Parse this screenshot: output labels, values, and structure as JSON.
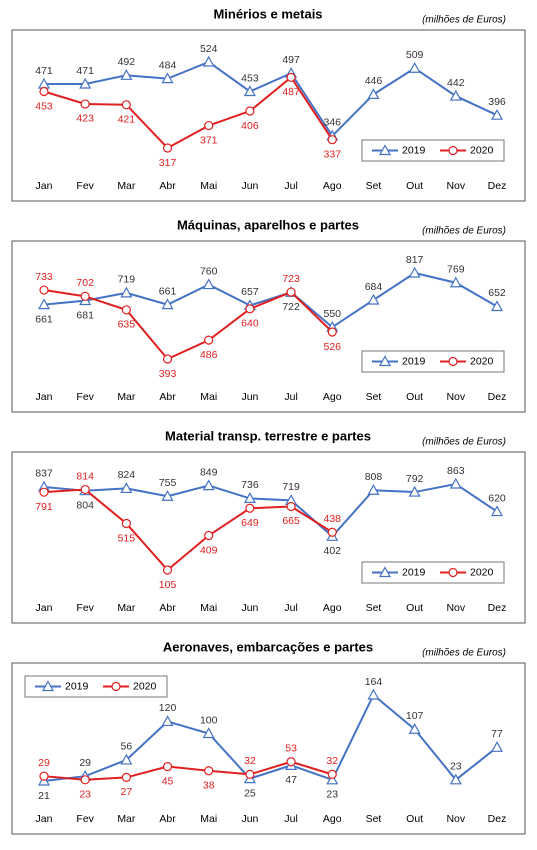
{
  "chart_data": [
    {
      "type": "line",
      "title": "Minérios e metais",
      "subtitle": "(milhões de Euros)",
      "legend": "lower right",
      "categories": [
        "Jan",
        "Fev",
        "Mar",
        "Abr",
        "Mai",
        "Jun",
        "Jul",
        "Ago",
        "Set",
        "Out",
        "Nov",
        "Dez"
      ],
      "series": [
        {
          "name": "2019",
          "color": "#4472c4",
          "marker": "triangle",
          "values": [
            471,
            471,
            492,
            484,
            524,
            453,
            497,
            346,
            446,
            509,
            442,
            396
          ]
        },
        {
          "name": "2020",
          "color": "#e02020",
          "marker": "circle",
          "values": [
            453,
            423,
            421,
            317,
            371,
            406,
            487,
            337,
            null,
            null,
            null,
            null
          ]
        }
      ]
    },
    {
      "type": "line",
      "title": "Máquinas, aparelhos e partes",
      "subtitle": "(milhões de Euros)",
      "legend": "lower right",
      "categories": [
        "Jan",
        "Fev",
        "Mar",
        "Abr",
        "Mai",
        "Jun",
        "Jul",
        "Ago",
        "Set",
        "Out",
        "Nov",
        "Dez"
      ],
      "series": [
        {
          "name": "2019",
          "color": "#4472c4",
          "marker": "triangle",
          "values": [
            661,
            681,
            719,
            661,
            760,
            657,
            722,
            550,
            684,
            817,
            769,
            652
          ]
        },
        {
          "name": "2020",
          "color": "#e02020",
          "marker": "circle",
          "values": [
            733,
            702,
            635,
            393,
            486,
            640,
            723,
            526,
            null,
            null,
            null,
            null
          ]
        }
      ]
    },
    {
      "type": "line",
      "title": "Material transp. terrestre e partes",
      "subtitle": "(milhões de Euros)",
      "legend": "lower right",
      "categories": [
        "Jan",
        "Fev",
        "Mar",
        "Abr",
        "Mai",
        "Jun",
        "Jul",
        "Ago",
        "Set",
        "Out",
        "Nov",
        "Dez"
      ],
      "series": [
        {
          "name": "2019",
          "color": "#4472c4",
          "marker": "triangle",
          "values": [
            837,
            804,
            824,
            755,
            849,
            736,
            719,
            402,
            808,
            792,
            863,
            620
          ]
        },
        {
          "name": "2020",
          "color": "#e02020",
          "marker": "circle",
          "values": [
            791,
            814,
            515,
            105,
            409,
            649,
            665,
            438,
            null,
            null,
            null,
            null
          ]
        }
      ]
    },
    {
      "type": "line",
      "title": "Aeronaves, embarcações e partes",
      "subtitle": "(milhões de Euros)",
      "legend": "upper left",
      "categories": [
        "Jan",
        "Fev",
        "Mar",
        "Abr",
        "Mai",
        "Jun",
        "Jul",
        "Ago",
        "Set",
        "Out",
        "Nov",
        "Dez"
      ],
      "series": [
        {
          "name": "2019",
          "color": "#4472c4",
          "marker": "triangle",
          "values": [
            21,
            29,
            56,
            120,
            100,
            25,
            47,
            23,
            164,
            107,
            23,
            77
          ]
        },
        {
          "name": "2020",
          "color": "#e02020",
          "marker": "circle",
          "values": [
            29,
            23,
            27,
            45,
            38,
            32,
            53,
            32,
            null,
            null,
            null,
            null
          ]
        }
      ]
    }
  ]
}
